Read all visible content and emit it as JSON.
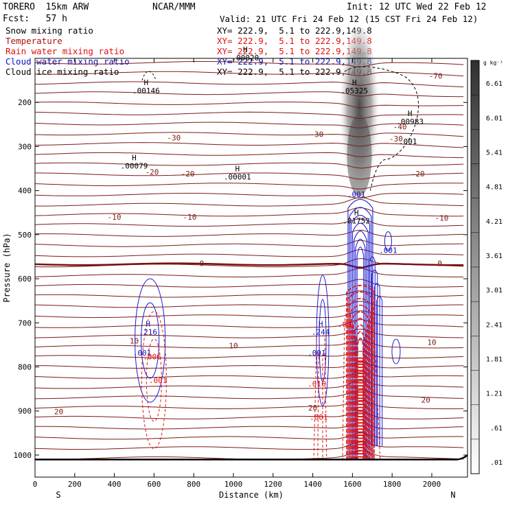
{
  "header": {
    "model": "TORERO  15km ARW",
    "org": "NCAR/MMM",
    "init": "Init: 12 UTC Wed 22 Feb 12",
    "fcst": "Fcst:   57 h",
    "valid": "Valid: 21 UTC Fri 24 Feb 12 (15 CST Fri 24 Feb 12)"
  },
  "legend": [
    {
      "label": "Snow mixing ratio",
      "xy": "XY= 222.9,  5.1 to 222.9,149.8",
      "color": "#000000"
    },
    {
      "label": "Temperature",
      "xy": "XY= 222.9,  5.1 to 222.9,149.8",
      "color": "#b01010"
    },
    {
      "label": "Rain water mixing ratio",
      "xy": "XY= 222.9,  5.1 to 222.9,149.8",
      "color": "#e01010"
    },
    {
      "label": "Cloud water mixing ratio",
      "xy": "XY= 222.9,  5.1 to 222.9,149.8",
      "color": "#1010c0"
    },
    {
      "label": "Cloud ice mixing ratio",
      "xy": "XY= 222.9,  5.1 to 222.9,149.8",
      "color": "#000000"
    }
  ],
  "chart_data": {
    "type": "contour",
    "xlabel": "Distance (km)",
    "ylabel": "Pressure (hPa)",
    "xlim": [
      0,
      2180
    ],
    "ylim": [
      1050,
      100
    ],
    "x_ticks": [
      0,
      200,
      400,
      600,
      800,
      1000,
      1200,
      1400,
      1600,
      1800,
      2000
    ],
    "x_tick_labels": [
      "0",
      "200",
      "400",
      "600",
      "800",
      "1000",
      "1200",
      "1400",
      "1600",
      "1800",
      "2000"
    ],
    "y_ticks": [
      200,
      300,
      400,
      500,
      600,
      700,
      800,
      900,
      1000
    ],
    "y_tick_labels": [
      "200",
      "300",
      "400",
      "500",
      "600",
      "700",
      "800",
      "900",
      "1000"
    ],
    "x_endpoints": {
      "left": "S",
      "right": "N"
    },
    "colorbar": {
      "unit": "g kg⁻¹",
      "levels": [
        "6.61",
        "6.01",
        "5.41",
        "4.81",
        "4.21",
        "3.61",
        "3.01",
        "2.41",
        "1.81",
        "1.21",
        ".61",
        ".01"
      ]
    },
    "temperature_levels": [
      -70,
      -40,
      -30,
      -20,
      -10,
      0,
      10,
      20
    ],
    "temperature_labels": [
      {
        "text": "-70",
        "x": 2020,
        "p": 140
      },
      {
        "text": "-40",
        "x": 1840,
        "p": 255
      },
      {
        "text": "-30",
        "x": 700,
        "p": 280
      },
      {
        "text": "-30",
        "x": 1420,
        "p": 272
      },
      {
        "text": "-30",
        "x": 1820,
        "p": 282
      },
      {
        "text": "-20",
        "x": 590,
        "p": 358
      },
      {
        "text": "-20",
        "x": 770,
        "p": 362
      },
      {
        "text": "-20",
        "x": 1930,
        "p": 362
      },
      {
        "text": "-10",
        "x": 400,
        "p": 460
      },
      {
        "text": "-10",
        "x": 780,
        "p": 460
      },
      {
        "text": "-10",
        "x": 2050,
        "p": 462
      },
      {
        "text": "0",
        "x": 840,
        "p": 565
      },
      {
        "text": "0",
        "x": 2040,
        "p": 565
      },
      {
        "text": "10",
        "x": 500,
        "p": 741
      },
      {
        "text": "10",
        "x": 1000,
        "p": 752
      },
      {
        "text": "10",
        "x": 2000,
        "p": 744
      },
      {
        "text": "20",
        "x": 120,
        "p": 901
      },
      {
        "text": "20",
        "x": 1400,
        "p": 893
      },
      {
        "text": "20",
        "x": 1970,
        "p": 875
      }
    ],
    "extrema": [
      {
        "mark": "H",
        "value": ".00146",
        "x": 560,
        "p": 175,
        "color": "#000000"
      },
      {
        "mark": "H",
        "value": ".00079",
        "x": 500,
        "p": 345,
        "color": "#000000"
      },
      {
        "mark": "H",
        "value": ".00001",
        "x": 1020,
        "p": 370,
        "color": "#000000"
      },
      {
        "mark": "H",
        "value": ".00020",
        "x": 1060,
        "p": 100,
        "color": "#000000"
      },
      {
        "mark": "H",
        "value": ".05325",
        "x": 1610,
        "p": 175,
        "color": "#000000"
      },
      {
        "mark": "H",
        "value": ".00983",
        "x": 1890,
        "p": 245,
        "color": "#000000"
      },
      {
        "mark": "",
        "value": ".001",
        "x": 1880,
        "p": 290,
        "color": "#000000"
      },
      {
        "mark": "",
        "value": ".001",
        "x": 1620,
        "p": 410,
        "color": "#1010c0"
      },
      {
        "mark": "H",
        "value": ".01752",
        "x": 1620,
        "p": 470,
        "color": "#000000"
      },
      {
        "mark": "",
        "value": ".001",
        "x": 1780,
        "p": 537,
        "color": "#1010c0"
      },
      {
        "mark": "H",
        "value": ".216",
        "x": 570,
        "p": 722,
        "color": "#1010c0"
      },
      {
        "mark": "",
        "value": ".001",
        "x": 540,
        "p": 770,
        "color": "#1010c0"
      },
      {
        "mark": "",
        "value": ".006",
        "x": 590,
        "p": 778,
        "color": "#e01010"
      },
      {
        "mark": "",
        "value": ".001",
        "x": 620,
        "p": 832,
        "color": "#e01010"
      },
      {
        "mark": "H",
        "value": ".244",
        "x": 1440,
        "p": 722,
        "color": "#1010c0"
      },
      {
        "mark": "",
        "value": ".001",
        "x": 1420,
        "p": 770,
        "color": "#1010c0"
      },
      {
        "mark": "",
        "value": ".016",
        "x": 1420,
        "p": 840,
        "color": "#e01010"
      },
      {
        "mark": "",
        "value": ".001",
        "x": 1430,
        "p": 915,
        "color": "#e01010"
      },
      {
        "mark": "",
        "value": ".00",
        "x": 1560,
        "p": 705,
        "color": "#e01010"
      }
    ]
  }
}
